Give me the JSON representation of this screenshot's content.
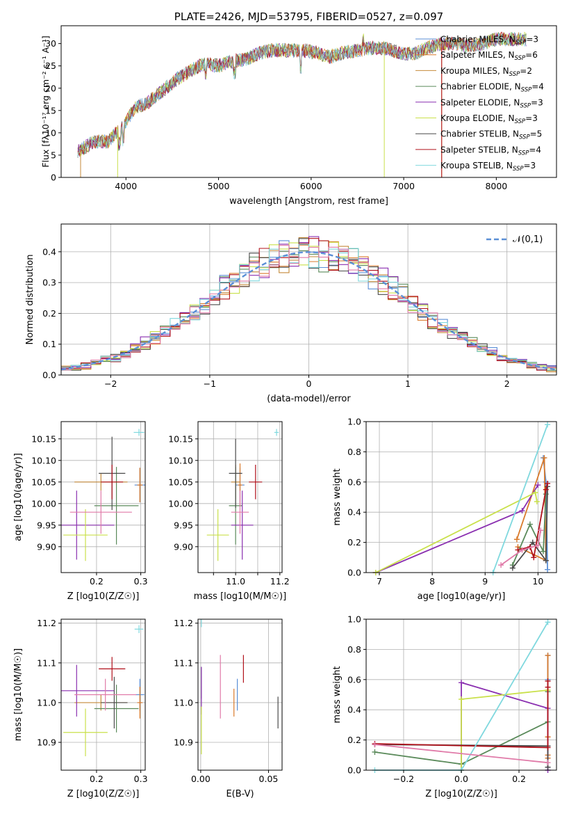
{
  "colors": [
    "#5b8fd6",
    "#d97a2b",
    "#c48a3a",
    "#5a8a5a",
    "#8a2fb0",
    "#c9e04a",
    "#4a4a4a",
    "#b0101a",
    "#7fd8de"
  ],
  "colors_ext": {
    "pink": "#e07aa8"
  },
  "chart_data": [
    {
      "id": "spectrum",
      "type": "line",
      "title": "PLATE=2426, MJD=53795, FIBERID=0527, z=0.097",
      "xlabel": "wavelength [Angstrom, rest frame]",
      "ylabel": "Flux [fλ10⁻¹⁷ erg cm⁻² s⁻¹ A⁻¹]",
      "xlim": [
        3300,
        8650
      ],
      "ylim": [
        0,
        34
      ],
      "xticks": [
        4000,
        5000,
        6000,
        7000,
        8000
      ],
      "yticks": [
        0,
        5,
        10,
        15,
        20,
        25,
        30
      ],
      "legend_position": "right",
      "legend": [
        "Chabrier MILES, N_SSP=3",
        "Salpeter MILES, N_SSP=6",
        "Kroupa MILES, N_SSP=2",
        "Chabrier ELODIE, N_SSP=4",
        "Salpeter ELODIE, N_SSP=3",
        "Kroupa ELODIE, N_SSP=3",
        "Chabrier STELIB, N_SSP=5",
        "Salpeter STELIB, N_SSP=4",
        "Kroupa STELIB, N_SSP=3"
      ],
      "continuum_x": [
        3500,
        3650,
        3800,
        3950,
        4100,
        4250,
        4400,
        4550,
        4700,
        4850,
        5000,
        5150,
        5300,
        5450,
        5600,
        5750,
        5900,
        6050,
        6200,
        6350,
        6500,
        6650,
        6800,
        6950,
        7100,
        7250,
        7400,
        7550,
        7700,
        7850,
        8000,
        8150,
        8300
      ],
      "continuum_y": [
        6,
        8,
        8,
        11,
        15.5,
        17,
        19.5,
        22,
        24,
        25.5,
        25,
        26,
        26.5,
        28,
        28.5,
        28.5,
        28.5,
        28,
        27,
        28,
        28.5,
        29,
        29,
        28,
        27.5,
        29,
        30,
        30,
        29.5,
        30,
        31,
        31,
        31
      ]
    },
    {
      "id": "residuals",
      "type": "line",
      "xlabel": "(data-model)/error",
      "ylabel": "Normed distribution",
      "xlim": [
        -2.5,
        2.5
      ],
      "ylim": [
        0,
        0.49
      ],
      "xticks": [
        -2,
        -1,
        0,
        1,
        2
      ],
      "yticks": [
        0.0,
        0.1,
        0.2,
        0.3,
        0.4
      ],
      "legend": [
        "𝒩(0,1)"
      ],
      "gaussian": {
        "mean": 0,
        "sigma": 1
      }
    },
    {
      "id": "age_vs_Z",
      "type": "scatter",
      "xlabel": "Z [log10(Z/Z☉)]",
      "ylabel": "age  [log10(age/yr)]",
      "xlim": [
        0.12,
        0.31
      ],
      "ylim": [
        9.84,
        10.19
      ],
      "xticks": [
        0.2,
        0.3
      ],
      "yticks": [
        9.9,
        9.95,
        10.0,
        10.05,
        10.1,
        10.15
      ],
      "points": [
        {
          "x": 0.298,
          "y": 10.043,
          "xerr": 0.012,
          "yerr": 0.04,
          "c": 0
        },
        {
          "x": 0.298,
          "y": 10.043,
          "xerr": 0.006,
          "yerr": 0.04,
          "c": 1
        },
        {
          "x": 0.21,
          "y": 10.05,
          "xerr": 0.06,
          "yerr": 0.02,
          "c": 2
        },
        {
          "x": 0.245,
          "y": 9.995,
          "xerr": 0.05,
          "yerr": 0.09,
          "c": 3
        },
        {
          "x": 0.155,
          "y": 9.95,
          "xerr": 0.085,
          "yerr": 0.08,
          "c": 4
        },
        {
          "x": 0.175,
          "y": 9.927,
          "xerr": 0.05,
          "yerr": 0.06,
          "c": 5
        },
        {
          "x": 0.235,
          "y": 10.07,
          "xerr": 0.03,
          "yerr": 0.085,
          "c": 6
        },
        {
          "x": 0.235,
          "y": 10.05,
          "xerr": 0.025,
          "yerr": 0.04,
          "c": 7
        },
        {
          "x": 0.296,
          "y": 10.165,
          "xerr": 0.012,
          "yerr": 0.008,
          "c": 8
        },
        {
          "x": 0.21,
          "y": 9.98,
          "xerr": 0.07,
          "yerr": 0.05,
          "c": 9
        }
      ]
    },
    {
      "id": "age_vs_mass",
      "type": "scatter",
      "xlabel": "mass [log10(M/M☉)]",
      "ylabel": "",
      "xlim": [
        10.83,
        11.21
      ],
      "ylim": [
        9.84,
        10.19
      ],
      "xticks": [
        10.9,
        11.0,
        11.1,
        11.2
      ],
      "xticklabels": [
        "",
        "11.0",
        "",
        "11.2"
      ],
      "yticks": [
        9.9,
        9.95,
        10.0,
        10.05,
        10.1,
        10.15
      ],
      "points": [
        {
          "x": 11.02,
          "y": 10.043,
          "xerr": 0.02,
          "yerr": 0.04,
          "c": 0
        },
        {
          "x": 11.02,
          "y": 10.043,
          "xerr": 0.01,
          "yerr": 0.05,
          "c": 1
        },
        {
          "x": 11.0,
          "y": 10.05,
          "xerr": 0.02,
          "yerr": 0.04,
          "c": 2
        },
        {
          "x": 11.0,
          "y": 9.995,
          "xerr": 0.03,
          "yerr": 0.09,
          "c": 3
        },
        {
          "x": 11.03,
          "y": 9.95,
          "xerr": 0.05,
          "yerr": 0.08,
          "c": 4
        },
        {
          "x": 10.92,
          "y": 9.927,
          "xerr": 0.05,
          "yerr": 0.06,
          "c": 5
        },
        {
          "x": 11.0,
          "y": 10.07,
          "xerr": 0.03,
          "yerr": 0.08,
          "c": 6
        },
        {
          "x": 11.09,
          "y": 10.05,
          "xerr": 0.03,
          "yerr": 0.04,
          "c": 7
        },
        {
          "x": 11.185,
          "y": 10.165,
          "xerr": 0.01,
          "yerr": 0.008,
          "c": 8
        },
        {
          "x": 11.02,
          "y": 9.98,
          "xerr": 0.04,
          "yerr": 0.05,
          "c": 9
        }
      ]
    },
    {
      "id": "mass_vs_Z",
      "type": "scatter",
      "xlabel": "Z [log10(Z/Z☉)]",
      "ylabel": "mass [log10(M/M☉)]",
      "xlim": [
        0.12,
        0.31
      ],
      "ylim": [
        10.83,
        11.21
      ],
      "xticks": [
        0.2,
        0.3
      ],
      "yticks": [
        10.9,
        11.0,
        11.1,
        11.2
      ],
      "points": [
        {
          "x": 0.298,
          "y": 11.02,
          "xerr": 0.01,
          "yerr": 0.04,
          "c": 0
        },
        {
          "x": 0.298,
          "y": 11.0,
          "xerr": 0.006,
          "yerr": 0.04,
          "c": 1
        },
        {
          "x": 0.21,
          "y": 11.0,
          "xerr": 0.06,
          "yerr": 0.02,
          "c": 2
        },
        {
          "x": 0.245,
          "y": 10.985,
          "xerr": 0.05,
          "yerr": 0.06,
          "c": 3
        },
        {
          "x": 0.155,
          "y": 11.03,
          "xerr": 0.085,
          "yerr": 0.065,
          "c": 4
        },
        {
          "x": 0.175,
          "y": 10.925,
          "xerr": 0.05,
          "yerr": 0.06,
          "c": 5
        },
        {
          "x": 0.24,
          "y": 11.0,
          "xerr": 0.03,
          "yerr": 0.065,
          "c": 6
        },
        {
          "x": 0.235,
          "y": 11.085,
          "xerr": 0.03,
          "yerr": 0.03,
          "c": 7
        },
        {
          "x": 0.296,
          "y": 11.185,
          "xerr": 0.01,
          "yerr": 0.01,
          "c": 8
        },
        {
          "x": 0.22,
          "y": 11.02,
          "xerr": 0.07,
          "yerr": 0.04,
          "c": 9
        }
      ]
    },
    {
      "id": "mass_vs_EBV",
      "type": "scatter",
      "xlabel": "E(B-V)",
      "ylabel": "",
      "xlim": [
        -0.002,
        0.06
      ],
      "ylim": [
        10.83,
        11.21
      ],
      "xticks": [
        0.0,
        0.05
      ],
      "xticklabels": [
        "0.00",
        "0.05"
      ],
      "yticks": [
        10.9,
        11.0,
        11.1,
        11.2
      ],
      "points": [
        {
          "x": 0.027,
          "y": 11.02,
          "xerr": 0.0,
          "yerr": 0.04,
          "c": 0
        },
        {
          "x": 0.0245,
          "y": 11.0,
          "xerr": 0.0,
          "yerr": 0.035,
          "c": 1
        },
        {
          "x": 0.0005,
          "y": 11.05,
          "xerr": 0.0,
          "yerr": 0.04,
          "c": 3
        },
        {
          "x": 0.0005,
          "y": 11.03,
          "xerr": 0.0,
          "yerr": 0.06,
          "c": 4
        },
        {
          "x": 0.0005,
          "y": 10.93,
          "xerr": 0.0,
          "yerr": 0.06,
          "c": 5
        },
        {
          "x": 0.057,
          "y": 10.975,
          "xerr": 0.0,
          "yerr": 0.04,
          "c": 6
        },
        {
          "x": 0.0315,
          "y": 11.085,
          "xerr": 0.0,
          "yerr": 0.035,
          "c": 7
        },
        {
          "x": 0.0005,
          "y": 11.2,
          "xerr": 0.0,
          "yerr": 0.01,
          "c": 8
        },
        {
          "x": 0.0145,
          "y": 11.04,
          "xerr": 0.0,
          "yerr": 0.08,
          "c": 9
        }
      ]
    },
    {
      "id": "weight_vs_age",
      "type": "line",
      "xlabel": "age  [log10(age/yr)]",
      "ylabel": "mass weight",
      "xlim": [
        6.75,
        10.35
      ],
      "ylim": [
        0,
        1.0
      ],
      "xticks": [
        7,
        8,
        9,
        10
      ],
      "yticks": [
        0.0,
        0.2,
        0.4,
        0.6,
        0.8,
        1.0
      ],
      "series": [
        {
          "c": 0,
          "x": [
            10.18,
            10.15,
            10.1
          ],
          "y": [
            0.02,
            0.6,
            0.76
          ]
        },
        {
          "c": 1,
          "x": [
            9.6,
            10.12,
            10.15,
            9.62
          ],
          "y": [
            0.22,
            0.76,
            0.08,
            0.17
          ]
        },
        {
          "c": 3,
          "x": [
            9.52,
            9.85,
            10.1,
            10.15
          ],
          "y": [
            0.05,
            0.32,
            0.14,
            0.52
          ]
        },
        {
          "c": 4,
          "x": [
            6.93,
            9.7,
            10.0
          ],
          "y": [
            0.0,
            0.41,
            0.58
          ]
        },
        {
          "c": 5,
          "x": [
            6.93,
            9.95,
            9.98
          ],
          "y": [
            0.0,
            0.53,
            0.47
          ]
        },
        {
          "c": 6,
          "x": [
            9.52,
            9.9,
            10.15,
            10.18
          ],
          "y": [
            0.03,
            0.2,
            0.08,
            0.57
          ]
        },
        {
          "c": 7,
          "x": [
            9.62,
            9.85,
            9.92,
            10.15,
            10.18
          ],
          "y": [
            0.15,
            0.17,
            0.1,
            0.55,
            0.59
          ]
        },
        {
          "c": 8,
          "x": [
            9.15,
            10.18
          ],
          "y": [
            0.0,
            0.98
          ]
        },
        {
          "c": 9,
          "x": [
            9.3,
            9.7,
            10.0,
            10.05
          ],
          "y": [
            0.05,
            0.15,
            0.18,
            0.28
          ]
        }
      ]
    },
    {
      "id": "weight_vs_Z",
      "type": "line",
      "xlabel": "Z [log10(Z/Z☉)]",
      "ylabel": "mass weight",
      "xlim": [
        -0.33,
        0.33
      ],
      "ylim": [
        0,
        1.0
      ],
      "xticks": [
        -0.2,
        0.0,
        0.2
      ],
      "yticks": [
        0.0,
        0.2,
        0.4,
        0.6,
        0.8,
        1.0
      ],
      "series": [
        {
          "c": 0,
          "x": [
            0.3,
            0.3,
            0.3
          ],
          "y": [
            0.02,
            0.6,
            0.76
          ]
        },
        {
          "c": 1,
          "x": [
            0.3,
            0.3,
            0.3,
            0.3
          ],
          "y": [
            0.08,
            0.22,
            0.76,
            0.1
          ]
        },
        {
          "c": 3,
          "x": [
            -0.3,
            0.0,
            0.3,
            0.3
          ],
          "y": [
            0.12,
            0.04,
            0.32,
            0.52
          ]
        },
        {
          "c": 4,
          "x": [
            0.0,
            0.0,
            0.3,
            0.3
          ],
          "y": [
            0.0,
            0.58,
            0.41,
            0.0
          ]
        },
        {
          "c": 5,
          "x": [
            0.0,
            0.0,
            0.3
          ],
          "y": [
            0.0,
            0.47,
            0.53
          ]
        },
        {
          "c": 6,
          "x": [
            -0.3,
            0.3,
            0.3
          ],
          "y": [
            0.17,
            0.16,
            0.02
          ]
        },
        {
          "c": 7,
          "x": [
            -0.3,
            0.3,
            0.3,
            0.3
          ],
          "y": [
            0.175,
            0.15,
            0.55,
            0.59
          ]
        },
        {
          "c": 8,
          "x": [
            -0.3,
            0.0,
            0.3
          ],
          "y": [
            0.0,
            0.0,
            0.98
          ]
        },
        {
          "c": 9,
          "x": [
            -0.3,
            0.3
          ],
          "y": [
            0.17,
            0.05
          ]
        }
      ]
    }
  ]
}
